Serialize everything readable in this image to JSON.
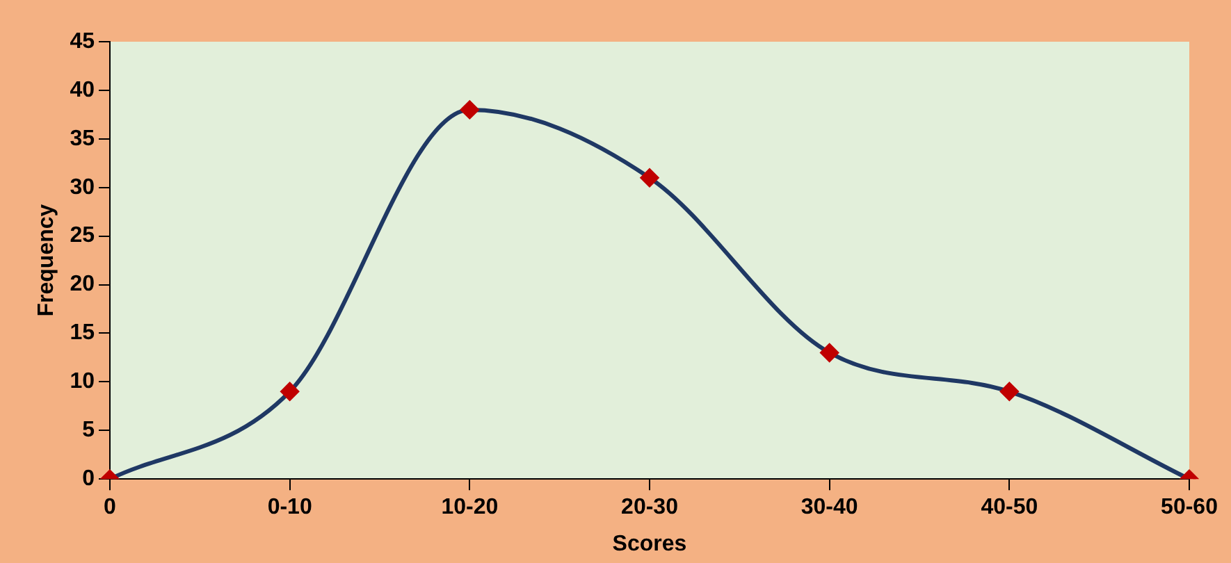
{
  "chart_data": {
    "type": "line",
    "xlabel": "Scores",
    "ylabel": "Frequency",
    "categories": [
      "0",
      "0-10",
      "10-20",
      "20-30",
      "30-40",
      "40-50",
      "50-60"
    ],
    "series": [
      {
        "color": "#1f3864",
        "values": [
          0,
          9,
          38,
          31,
          13,
          9,
          0
        ]
      }
    ],
    "ylim": [
      0,
      45
    ],
    "yticks": [
      0,
      5,
      10,
      15,
      20,
      25,
      30,
      35,
      40,
      45
    ],
    "grid": false,
    "legend": false,
    "marker": "diamond",
    "line_style": "solid"
  }
}
